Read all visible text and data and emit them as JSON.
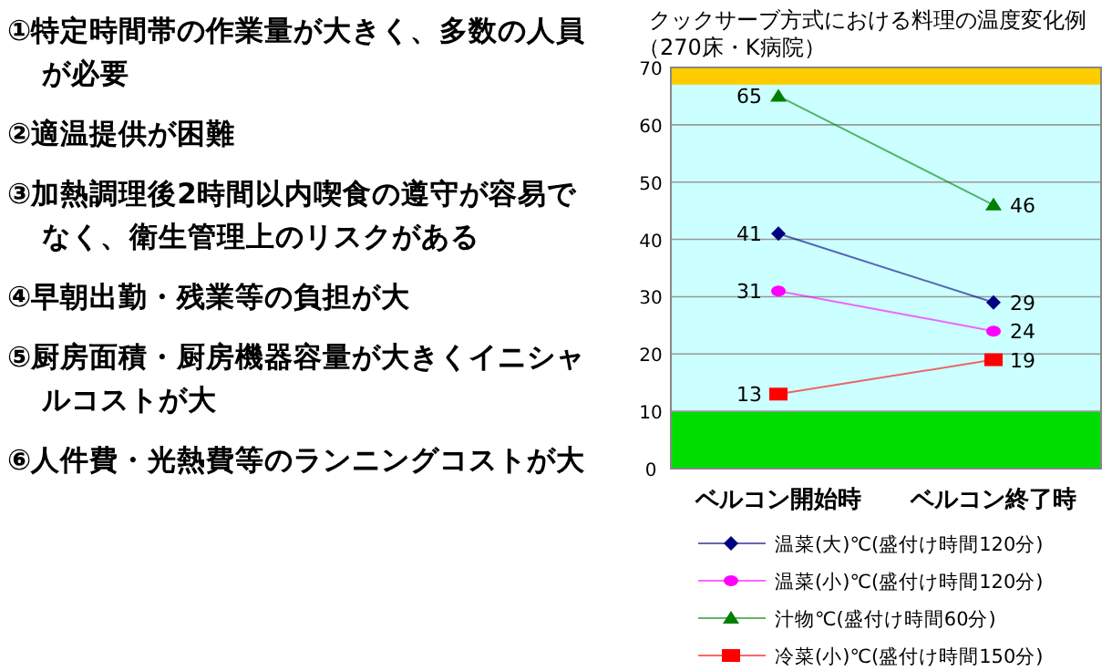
{
  "chart_data": [
    {
      "type": "other",
      "annotations": [
        "①特定時間帯の作業量が大きく、多数の人員が必要",
        "②適温提供が困難",
        "③加熱調理後2時間以内喫食の遵守が容易でなく、衛生管理上のリスクがある",
        "④早朝出勤・残業等の負担が大",
        "⑤厨房面積・厨房機器容量が大きくイニシャルコストが大",
        "⑥人件費・光熱費等のランニングコストが大"
      ]
    },
    {
      "type": "line",
      "title": "クックサーブ方式における料理の温度変化例",
      "subtitle": "（270床・K病院）",
      "categories": [
        "ベルコン開始時",
        "ベルコン終了時"
      ],
      "series": [
        {
          "name": "温菜(大)℃(盛付け時間120分)",
          "color": "#000080",
          "marker": "diamond",
          "values": [
            41,
            29
          ]
        },
        {
          "name": "温菜(小)℃(盛付け時間120分)",
          "color": "#ff00ff",
          "marker": "circle",
          "values": [
            31,
            24
          ]
        },
        {
          "name": "汁物℃(盛付け時間60分)",
          "color": "#008000",
          "marker": "triangle",
          "values": [
            65,
            46
          ]
        },
        {
          "name": "冷菜(小)℃(盛付け時間150分)",
          "color": "#ff0000",
          "marker": "square",
          "values": [
            13,
            19
          ]
        }
      ],
      "ylim": [
        0,
        70
      ],
      "yticks": [
        0,
        10,
        20,
        30,
        40,
        50,
        60,
        70
      ],
      "grid": "y",
      "data_labels": true,
      "legend": "bottom",
      "bands": [
        {
          "axis": "y",
          "from": 0,
          "to": 10,
          "color": "#00dd00"
        },
        {
          "axis": "y",
          "from": 67,
          "to": 70,
          "color": "#ffcc00"
        }
      ]
    }
  ]
}
